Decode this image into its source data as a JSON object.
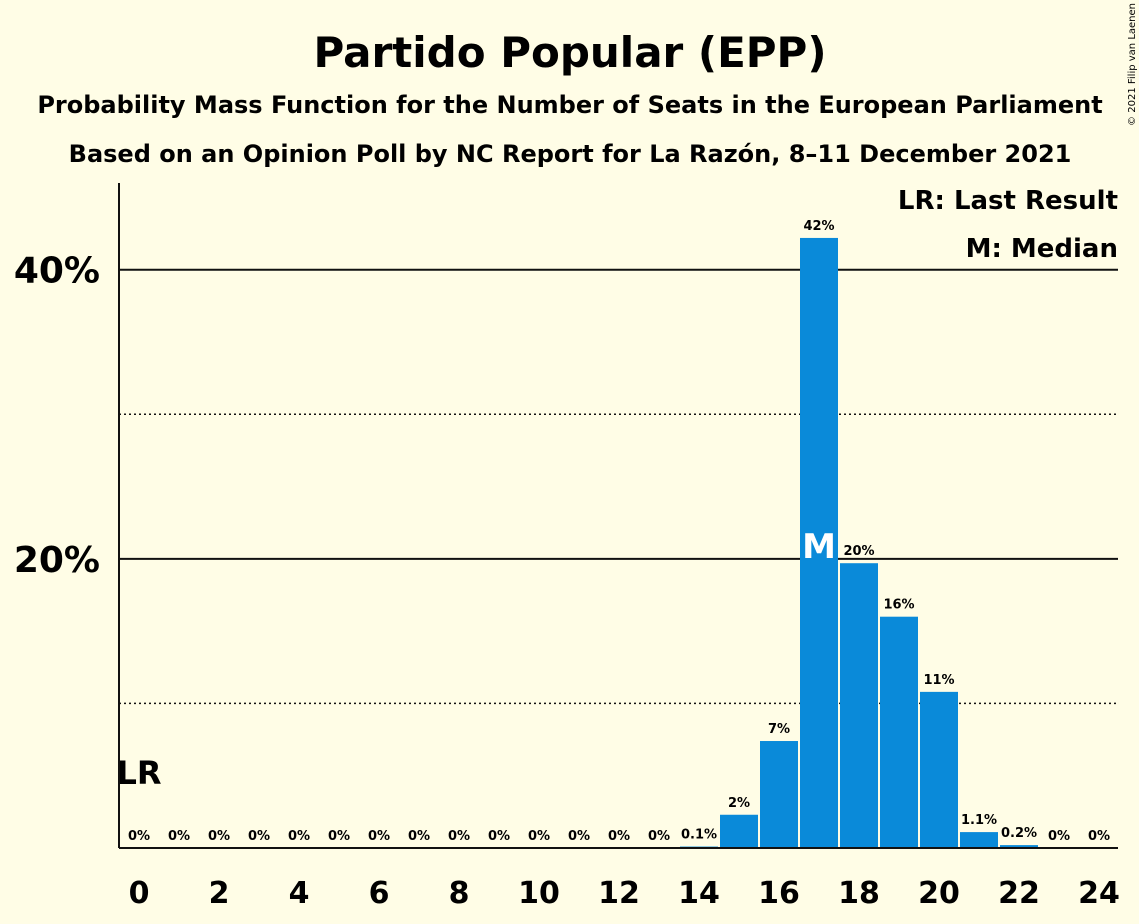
{
  "chart_data": {
    "type": "bar",
    "title": "Partido Popular (EPP)",
    "subtitle": "Probability Mass Function for the Number of Seats in the European Parliament",
    "subtitle2": "Based on an Opinion Poll by NC Report for La Razón, 8–11 December 2021",
    "copyright": "© 2021 Filip van Laenen",
    "x": [
      0,
      1,
      2,
      3,
      4,
      5,
      6,
      7,
      8,
      9,
      10,
      11,
      12,
      13,
      14,
      15,
      16,
      17,
      18,
      19,
      20,
      21,
      22,
      23,
      24
    ],
    "values": [
      0,
      0,
      0,
      0,
      0,
      0,
      0,
      0,
      0,
      0,
      0,
      0,
      0,
      0,
      0.1,
      2.3,
      7.4,
      42.2,
      19.7,
      16.0,
      10.8,
      1.1,
      0.2,
      0,
      0
    ],
    "bar_labels": [
      "0%",
      "0%",
      "0%",
      "0%",
      "0%",
      "0%",
      "0%",
      "0%",
      "0%",
      "0%",
      "0%",
      "0%",
      "0%",
      "0%",
      "0.1%",
      "2%",
      "7%",
      "42%",
      "20%",
      "16%",
      "11%",
      "1.1%",
      "0.2%",
      "0%",
      "0%"
    ],
    "x_tick_labels": [
      "0",
      "2",
      "4",
      "6",
      "8",
      "10",
      "12",
      "14",
      "16",
      "18",
      "20",
      "22",
      "24"
    ],
    "x_tick_values": [
      0,
      2,
      4,
      6,
      8,
      10,
      12,
      14,
      16,
      18,
      20,
      22,
      24
    ],
    "y_ticks": [
      {
        "value": 20,
        "label": "20%"
      },
      {
        "value": 40,
        "label": "40%"
      }
    ],
    "y_minor_ticks": [
      10,
      30
    ],
    "ylim": [
      0,
      46
    ],
    "last_result": 0,
    "median": 17,
    "lr_label": "LR",
    "m_label": "M",
    "legend": [
      "LR: Last Result",
      "M: Median"
    ],
    "legend_placement": "top-right",
    "colors": {
      "bar": "#0A8AD9",
      "background": "#FFFDE6",
      "text": "#111111",
      "median_text": "#FFFFFF"
    }
  }
}
